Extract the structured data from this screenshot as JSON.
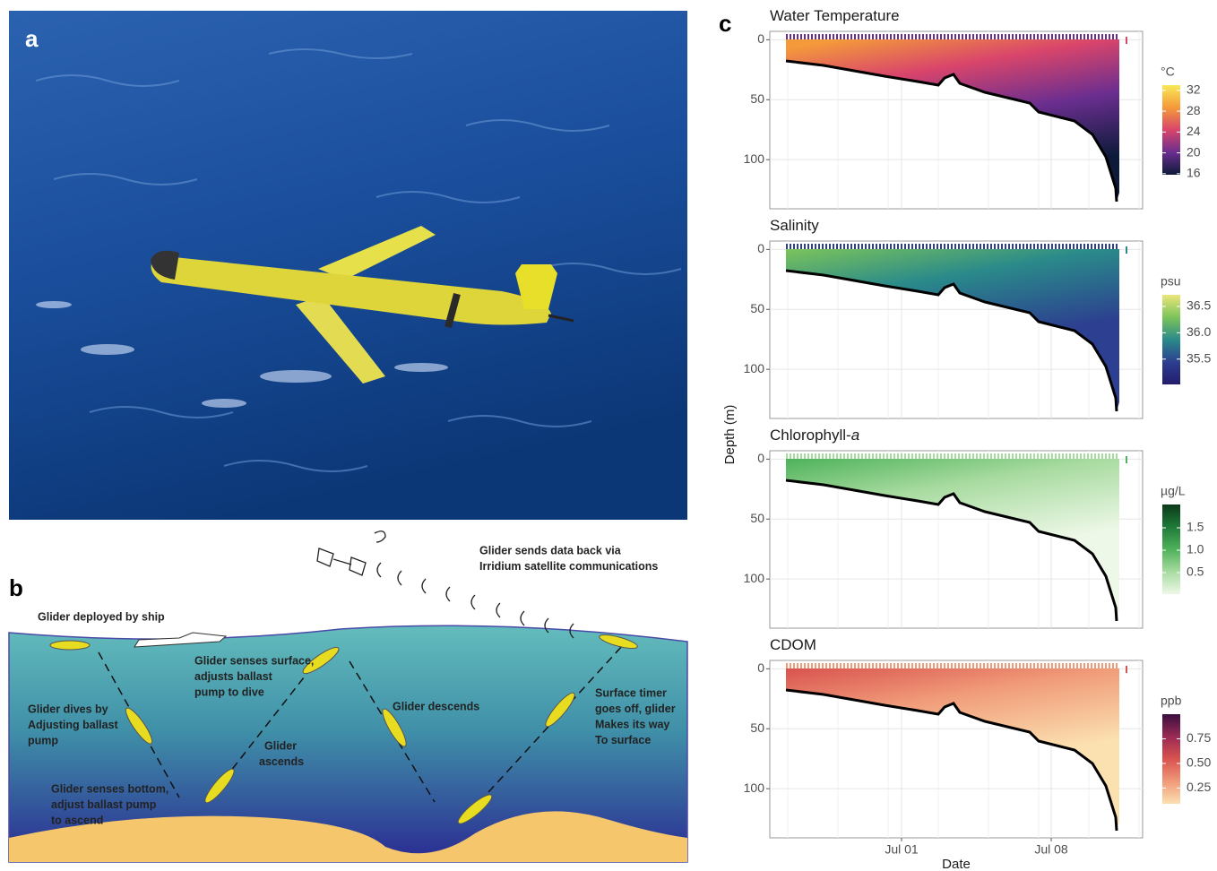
{
  "panel_a": {
    "label": "a"
  },
  "panel_b": {
    "label": "b",
    "annotations": [
      {
        "lines": [
          "Glider deployed by ship"
        ]
      },
      {
        "lines": [
          "Glider sends data back via",
          "Irridium satellite communications"
        ]
      },
      {
        "lines": [
          "Glider senses surface,",
          "adjusts ballast",
          "pump to dive"
        ]
      },
      {
        "lines": [
          "Glider dives by",
          "Adjusting ballast",
          "pump"
        ]
      },
      {
        "lines": [
          "Glider descends"
        ]
      },
      {
        "lines": [
          "Surface timer",
          "goes off, glider",
          "Makes its way",
          "To surface"
        ]
      },
      {
        "lines": [
          "Glider",
          "ascends"
        ]
      },
      {
        "lines": [
          "Glider senses bottom,",
          "adjust ballast pump",
          "to ascend"
        ]
      }
    ]
  },
  "panel_c": {
    "label": "c",
    "y_label": "Depth (m)",
    "x_label": "Date",
    "x_ticks": [
      "Jul 01",
      "Jul 08"
    ],
    "ylim": [
      -7,
      141
    ],
    "yticks": [
      0,
      50,
      100
    ],
    "panels": [
      {
        "title": "Water Temperature",
        "unit": "°C",
        "clim": [
          15.8,
          33
        ],
        "cticks": [
          32,
          28,
          24,
          20,
          16
        ],
        "colors": [
          "#f9e858",
          "#f49a3a",
          "#d9456b",
          "#6a2e8f",
          "#0d1a3a"
        ]
      },
      {
        "title": "Salinity",
        "unit": "psu",
        "clim": [
          35.02,
          36.72
        ],
        "cticks": [
          36.5,
          {
            "value": 36,
            "label": "36.0"
          },
          35.5
        ],
        "colors": [
          "#ece57c",
          "#7cc45a",
          "#2a8a8a",
          "#2c3f90",
          "#241c6c"
        ]
      },
      {
        "title": "Chlorophyll-",
        "title_italic": "a",
        "unit": "µg/L",
        "clim": [
          0.02,
          2.02
        ],
        "cticks": [
          1.5,
          {
            "value": 1,
            "label": "1.0"
          },
          0.5
        ],
        "colors": [
          "#0b3a1a",
          "#1f7a38",
          "#4eb25a",
          "#a8dba0",
          "#eef8e8"
        ]
      },
      {
        "title": "CDOM",
        "unit": "ppb",
        "clim": [
          0.09,
          1.0
        ],
        "cticks": [
          0.75,
          {
            "value": 0.5,
            "label": "0.50"
          },
          0.25
        ],
        "colors": [
          "#3b0f3f",
          "#9a2a55",
          "#d9534f",
          "#f09a78",
          "#fbe0b0"
        ]
      }
    ]
  }
}
